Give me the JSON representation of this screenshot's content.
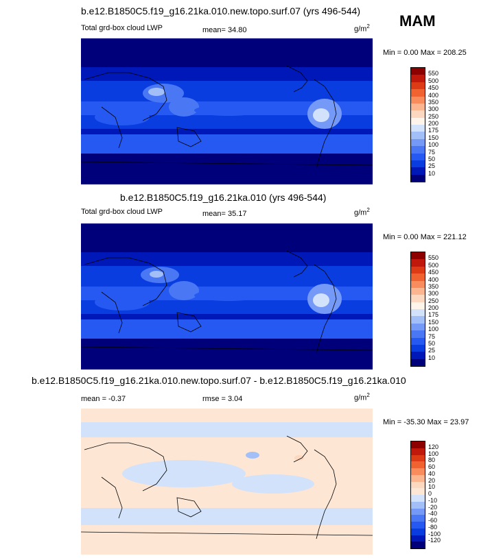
{
  "season": "MAM",
  "panels": [
    {
      "title": "b.e12.B1850C5.f19_g16.21ka.010.new.topo.surf.07 (yrs 496-544)",
      "left_label": "Total grd-box cloud LWP",
      "mean_text": "mean=  34.80",
      "rmse_text": "",
      "unit_base": "g/m",
      "unit_exp": "2",
      "minmax": "Min =   0.00 Max = 208.25"
    },
    {
      "title": "b.e12.B1850C5.f19_g16.21ka.010 (yrs 496-544)",
      "left_label": "Total grd-box cloud LWP",
      "mean_text": "mean=  35.17",
      "rmse_text": "",
      "unit_base": "g/m",
      "unit_exp": "2",
      "minmax": "Min =   0.00 Max = 221.12"
    },
    {
      "title": "b.e12.B1850C5.f19_g16.21ka.010.new.topo.surf.07 - b.e12.B1850C5.f19_g16.21ka.010",
      "left_label": "",
      "mean_text": "mean =  -0.37",
      "rmse_text": "rmse =   3.04",
      "unit_base": "g/m",
      "unit_exp": "2",
      "minmax": "Min = -35.30 Max =  23.97"
    }
  ],
  "chart_data": [
    {
      "type": "heatmap",
      "title": "b.e12.B1850C5.f19_g16.21ka.010.new.topo.surf.07 (yrs 496-544)",
      "variable": "Total grd-box cloud LWP",
      "units": "g/m^2",
      "mean": 34.8,
      "min": 0.0,
      "max": 208.25,
      "colorbar_levels": [
        10,
        25,
        50,
        75,
        100,
        150,
        175,
        200,
        250,
        300,
        350,
        400,
        450,
        500,
        550
      ],
      "colorbar_colors": [
        "#00007a",
        "#0018b8",
        "#0a3de0",
        "#2659f2",
        "#4a78f5",
        "#7599f6",
        "#a3bff8",
        "#d2e2fa",
        "#fff4ea",
        "#fdd8c0",
        "#fcb68f",
        "#f98c5c",
        "#f06331",
        "#dd3a16",
        "#c0180a",
        "#8c0000"
      ]
    },
    {
      "type": "heatmap",
      "title": "b.e12.B1850C5.f19_g16.21ka.010 (yrs 496-544)",
      "variable": "Total grd-box cloud LWP",
      "units": "g/m^2",
      "mean": 35.17,
      "min": 0.0,
      "max": 221.12,
      "colorbar_levels": [
        10,
        25,
        50,
        75,
        100,
        150,
        175,
        200,
        250,
        300,
        350,
        400,
        450,
        500,
        550
      ],
      "colorbar_colors": [
        "#00007a",
        "#0018b8",
        "#0a3de0",
        "#2659f2",
        "#4a78f5",
        "#7599f6",
        "#a3bff8",
        "#d2e2fa",
        "#fff4ea",
        "#fdd8c0",
        "#fcb68f",
        "#f98c5c",
        "#f06331",
        "#dd3a16",
        "#c0180a",
        "#8c0000"
      ]
    },
    {
      "type": "heatmap",
      "title": "b.e12.B1850C5.f19_g16.21ka.010.new.topo.surf.07 - b.e12.B1850C5.f19_g16.21ka.010",
      "units": "g/m^2",
      "mean": -0.37,
      "rmse": 3.04,
      "min": -35.3,
      "max": 23.97,
      "colorbar_levels": [
        -120,
        -100,
        -80,
        -60,
        -40,
        -20,
        -10,
        0,
        10,
        20,
        40,
        60,
        80,
        100,
        120
      ],
      "colorbar_colors": [
        "#00007a",
        "#0018b8",
        "#0a3de0",
        "#2659f2",
        "#4a78f5",
        "#7599f6",
        "#a3bff8",
        "#d2e2fa",
        "#fde6d4",
        "#fdd8c0",
        "#fcb68f",
        "#f98c5c",
        "#f06331",
        "#dd3a16",
        "#c0180a",
        "#8c0000"
      ]
    }
  ]
}
